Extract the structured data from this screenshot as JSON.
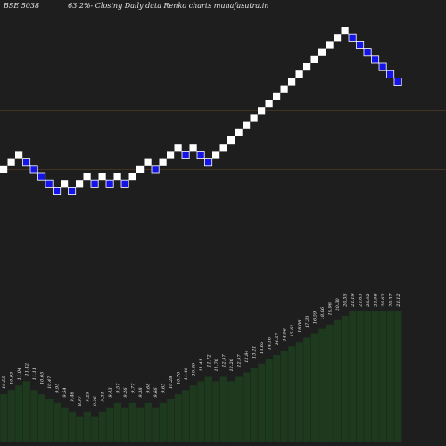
{
  "header": {
    "symbol": "BSE 5038",
    "caption": "63 2%-  Closing Daily data  Renko  charts munafasutra.in"
  },
  "chart_data": {
    "type": "renko",
    "colors": {
      "background": "#1e1e1e",
      "up_brick": "#ffffff",
      "down_brick": "#1414e6",
      "down_brick_border": "#ffffff",
      "hline": "#b87333",
      "volume_fill": "#1e3a1e",
      "volume_line": "#202020"
    },
    "reference_lines": [
      1,
      9
    ],
    "bricks": [
      {
        "dir": "up",
        "level": 1
      },
      {
        "dir": "up",
        "level": 2
      },
      {
        "dir": "up",
        "level": 3
      },
      {
        "dir": "down",
        "level": 2
      },
      {
        "dir": "down",
        "level": 1
      },
      {
        "dir": "down",
        "level": 0
      },
      {
        "dir": "down",
        "level": -1
      },
      {
        "dir": "down",
        "level": -2
      },
      {
        "dir": "up",
        "level": -1
      },
      {
        "dir": "down",
        "level": -2
      },
      {
        "dir": "up",
        "level": -1
      },
      {
        "dir": "up",
        "level": 0
      },
      {
        "dir": "down",
        "level": -1
      },
      {
        "dir": "up",
        "level": 0
      },
      {
        "dir": "down",
        "level": -1
      },
      {
        "dir": "up",
        "level": 0
      },
      {
        "dir": "down",
        "level": -1
      },
      {
        "dir": "up",
        "level": 0
      },
      {
        "dir": "up",
        "level": 1
      },
      {
        "dir": "up",
        "level": 2
      },
      {
        "dir": "down",
        "level": 1
      },
      {
        "dir": "up",
        "level": 2
      },
      {
        "dir": "up",
        "level": 3
      },
      {
        "dir": "up",
        "level": 4
      },
      {
        "dir": "down",
        "level": 3
      },
      {
        "dir": "up",
        "level": 4
      },
      {
        "dir": "down",
        "level": 3
      },
      {
        "dir": "down",
        "level": 2
      },
      {
        "dir": "up",
        "level": 3
      },
      {
        "dir": "up",
        "level": 4
      },
      {
        "dir": "up",
        "level": 5
      },
      {
        "dir": "up",
        "level": 6
      },
      {
        "dir": "up",
        "level": 7
      },
      {
        "dir": "up",
        "level": 8
      },
      {
        "dir": "up",
        "level": 9
      },
      {
        "dir": "up",
        "level": 10
      },
      {
        "dir": "up",
        "level": 11
      },
      {
        "dir": "up",
        "level": 12
      },
      {
        "dir": "up",
        "level": 13
      },
      {
        "dir": "up",
        "level": 14
      },
      {
        "dir": "up",
        "level": 15
      },
      {
        "dir": "up",
        "level": 16
      },
      {
        "dir": "up",
        "level": 17
      },
      {
        "dir": "up",
        "level": 18
      },
      {
        "dir": "up",
        "level": 19
      },
      {
        "dir": "up",
        "level": 20
      },
      {
        "dir": "down",
        "level": 19
      },
      {
        "dir": "down",
        "level": 18
      },
      {
        "dir": "down",
        "level": 17
      },
      {
        "dir": "down",
        "level": 16
      },
      {
        "dir": "down",
        "level": 15
      },
      {
        "dir": "down",
        "level": 14
      },
      {
        "dir": "down",
        "level": 13
      }
    ],
    "price_labels": [
      "10.55",
      "10.93",
      "11.04",
      "11.42",
      "11.11",
      "10.65",
      "10.47",
      "9.95",
      "9.54",
      "9.46",
      "8.97",
      "9.29",
      "9.06",
      "9.31",
      "9.43",
      "9.57",
      "9.26",
      "9.77",
      "9.38",
      "9.68",
      "9.66",
      "9.63",
      "10.28",
      "10.76",
      "11.46",
      "10.89",
      "11.41",
      "11.72",
      "11.76",
      "12.57",
      "12.26",
      "12.57",
      "12.84",
      "13.21",
      "13.65",
      "14.16",
      "14.57",
      "14.96",
      "15.61",
      "16.06",
      "17.30",
      "16.59",
      "18.06",
      "19.96",
      "20.30",
      "20.35",
      "21.19",
      "21.63",
      "20.92",
      "21.98",
      "20.62",
      "20.37",
      "21.12"
    ],
    "label_levels": [
      6,
      7,
      8,
      9,
      8,
      7,
      6,
      5,
      4,
      3,
      2,
      3,
      2,
      3,
      4,
      5,
      4,
      5,
      4,
      5,
      4,
      5,
      6,
      7,
      8,
      9,
      10,
      11,
      10,
      11,
      10,
      11,
      12,
      13,
      14,
      15,
      16,
      17,
      18,
      19,
      20,
      21,
      22,
      23,
      24,
      25,
      25,
      25,
      25,
      25,
      25,
      25,
      25
    ],
    "volume_levels": [
      11,
      12,
      13,
      14,
      12,
      11,
      10,
      9,
      8,
      7,
      6,
      7,
      6,
      7,
      8,
      9,
      8,
      9,
      8,
      9,
      8,
      9,
      10,
      11,
      12,
      13,
      14,
      15,
      14,
      15,
      14,
      15,
      16,
      17,
      18,
      19,
      20,
      21,
      22,
      23,
      24,
      25,
      26,
      27,
      28,
      29,
      30,
      30,
      30,
      30,
      30,
      30,
      30
    ]
  }
}
